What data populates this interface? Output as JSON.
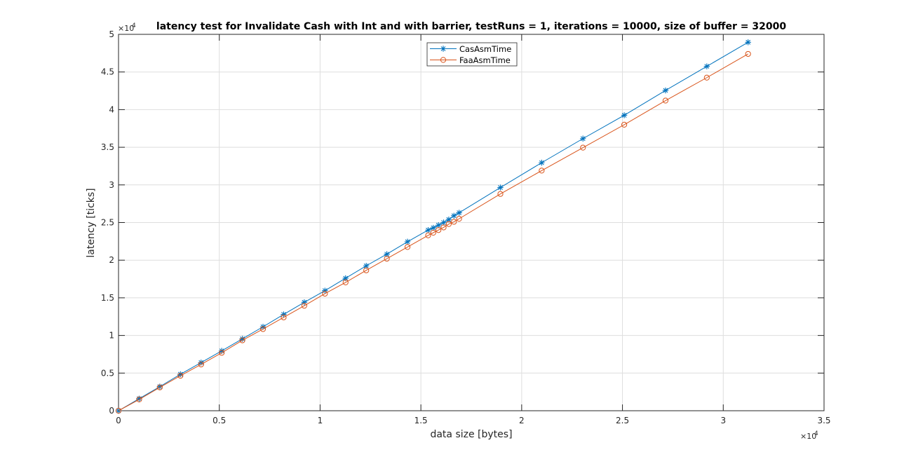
{
  "chart_data": {
    "type": "line",
    "title": "latency test for Invalidate Cash with Int and with barrier, testRuns = 1, iterations = 10000, size of buffer = 32000",
    "xlabel": "data size [bytes]",
    "ylabel": "latency [ticks]",
    "x_exponent_label": "×10",
    "x_exponent_power": "4",
    "y_exponent_label": "×10",
    "y_exponent_power": "4",
    "xlim": [
      0,
      35000
    ],
    "ylim": [
      0,
      50000
    ],
    "xticks": [
      0,
      5000,
      10000,
      15000,
      20000,
      25000,
      30000,
      35000
    ],
    "xtick_labels": [
      "0",
      "0.5",
      "1",
      "1.5",
      "2",
      "2.5",
      "3",
      "3.5"
    ],
    "yticks": [
      0,
      5000,
      10000,
      15000,
      20000,
      25000,
      30000,
      35000,
      40000,
      45000,
      50000
    ],
    "ytick_labels": [
      "0",
      "0.5",
      "1",
      "1.5",
      "2",
      "2.5",
      "3",
      "3.5",
      "4",
      "4.5",
      "5"
    ],
    "grid": true,
    "legend_position": "top-center",
    "x": [
      0,
      1024,
      2048,
      3072,
      4096,
      5120,
      6144,
      7168,
      8192,
      9216,
      10240,
      11264,
      12288,
      13312,
      14336,
      15360,
      15616,
      15872,
      16128,
      16384,
      16640,
      16896,
      18944,
      20992,
      23040,
      25088,
      27136,
      29184,
      31232
    ],
    "series": [
      {
        "name": "CasAsmTime",
        "marker": "asterisk",
        "color": "#0072BD",
        "values": [
          0,
          1600,
          3200,
          4850,
          6400,
          7950,
          9550,
          11150,
          12800,
          14400,
          15950,
          17600,
          19250,
          20800,
          22450,
          24000,
          24300,
          24650,
          25000,
          25400,
          25900,
          26300,
          29650,
          32950,
          36150,
          39250,
          42550,
          45750,
          48950
        ]
      },
      {
        "name": "FaaAsmTime",
        "marker": "circle",
        "color": "#D95319",
        "values": [
          0,
          1500,
          3100,
          4650,
          6150,
          7700,
          9350,
          10850,
          12400,
          13950,
          15550,
          17050,
          18650,
          20200,
          21750,
          23300,
          23650,
          24000,
          24350,
          24800,
          25100,
          25500,
          28800,
          31900,
          34950,
          38000,
          41200,
          44250,
          47400
        ]
      }
    ]
  },
  "colors": {
    "axis": "#262626",
    "grid": "#dedede",
    "background": "#ffffff"
  }
}
